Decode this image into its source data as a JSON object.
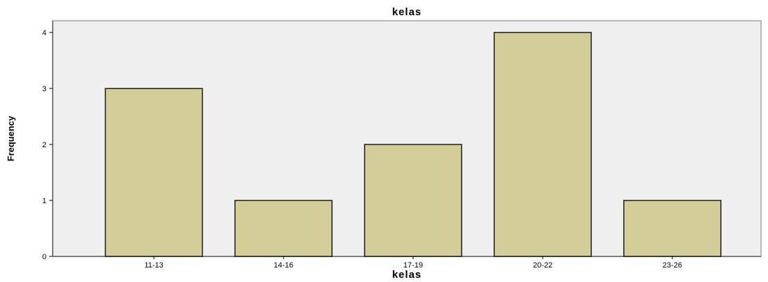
{
  "chart_data": {
    "type": "bar",
    "title": "kelas",
    "xlabel": "kelas",
    "ylabel": "Frequency",
    "categories": [
      "11-13",
      "14-16",
      "17-19",
      "20-22",
      "23-26"
    ],
    "values": [
      3,
      1,
      2,
      4,
      1
    ],
    "ylim": [
      0,
      4
    ],
    "yticks": [
      0,
      1,
      2,
      3,
      4
    ],
    "grid": false,
    "colors": {
      "plot_background": "#f0f0f0",
      "bar_fill": "#d3ce97",
      "bar_stroke": "#1a1a1a",
      "axis": "#000000"
    }
  }
}
